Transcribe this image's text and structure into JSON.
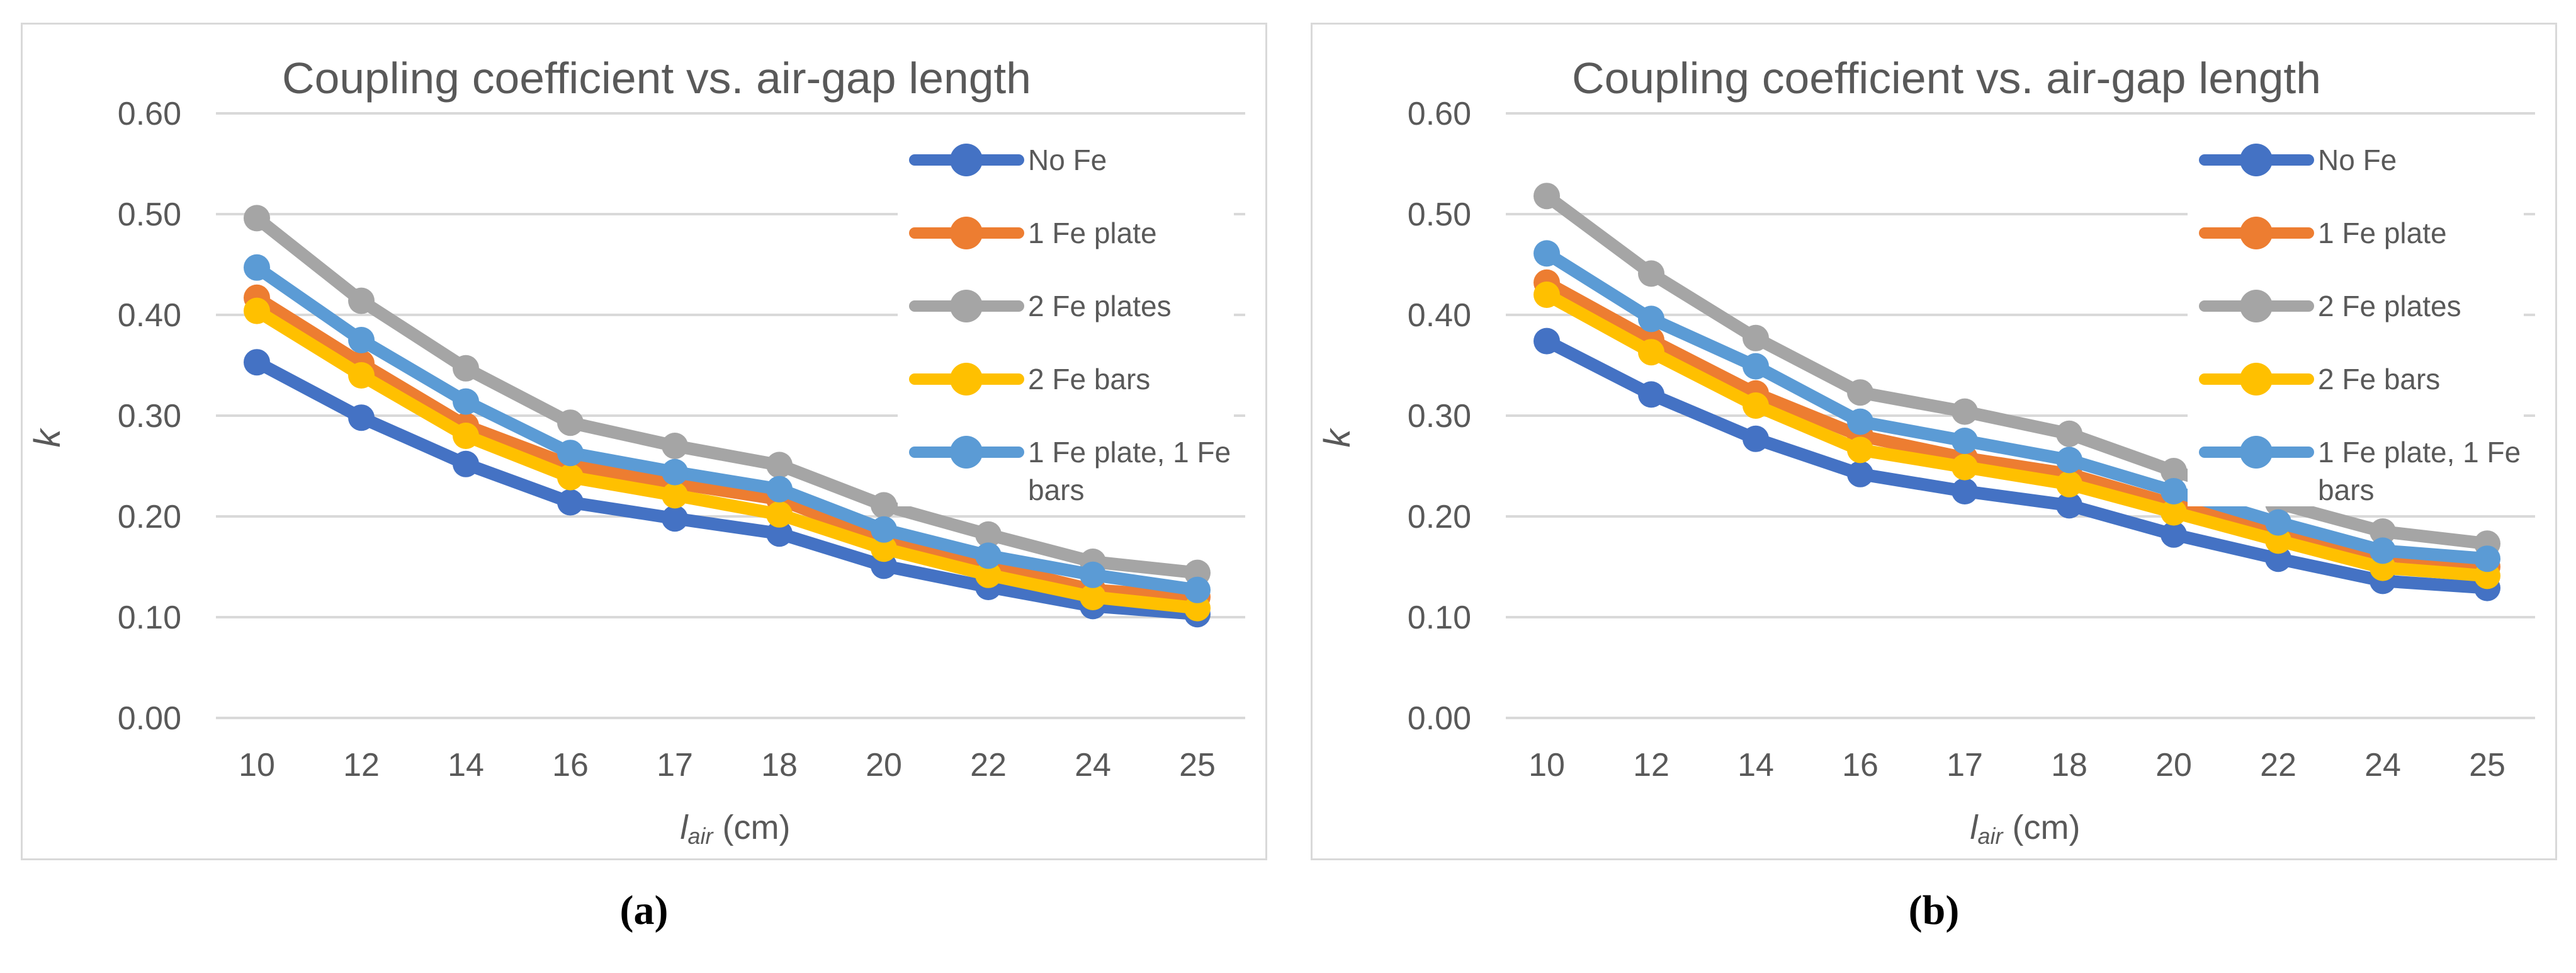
{
  "figure": {
    "caption_a": "(a)",
    "caption_b": "(b)"
  },
  "colors": {
    "series": [
      "#4472C4",
      "#ED7D31",
      "#A5A5A5",
      "#FFC000",
      "#5B9BD5"
    ],
    "gridline": "#D9D9D9",
    "chart_border": "#D9D9D9",
    "text": "#595959",
    "caption_text": "#000000",
    "legend_bg": "#FFFFFF"
  },
  "chart_data": [
    {
      "id": "a",
      "type": "line",
      "title": "Coupling coefficient vs. air-gap length",
      "xlabel_parts": {
        "symbol": "l",
        "subscript": "air",
        "unit": " (cm)"
      },
      "ylabel": "k",
      "x_categories": [
        10,
        12,
        14,
        16,
        17,
        18,
        20,
        22,
        24,
        25
      ],
      "ylim": [
        0.0,
        0.6
      ],
      "ytick_step": 0.1,
      "ytick_labels": [
        "0.00",
        "0.10",
        "0.20",
        "0.30",
        "0.40",
        "0.50",
        "0.60"
      ],
      "grid": "horizontal",
      "legend_position": "right-overlay",
      "marker": "circle",
      "series": [
        {
          "name": "No Fe",
          "values": [
            0.353,
            0.298,
            0.252,
            0.214,
            0.198,
            0.183,
            0.151,
            0.13,
            0.111,
            0.103
          ]
        },
        {
          "name": "1 Fe plate",
          "values": [
            0.417,
            0.352,
            0.29,
            0.251,
            0.233,
            0.217,
            0.177,
            0.152,
            0.127,
            0.12
          ]
        },
        {
          "name": "2 Fe plates",
          "values": [
            0.496,
            0.414,
            0.347,
            0.293,
            0.27,
            0.251,
            0.211,
            0.182,
            0.155,
            0.144
          ]
        },
        {
          "name": "2 Fe bars",
          "values": [
            0.404,
            0.34,
            0.28,
            0.239,
            0.221,
            0.202,
            0.168,
            0.142,
            0.12,
            0.109
          ]
        },
        {
          "name": "1 Fe plate, 1 Fe bars",
          "values": [
            0.447,
            0.375,
            0.314,
            0.263,
            0.244,
            0.227,
            0.187,
            0.161,
            0.142,
            0.127
          ]
        }
      ]
    },
    {
      "id": "b",
      "type": "line",
      "title": "Coupling coefficient vs. air-gap length",
      "xlabel_parts": {
        "symbol": "l",
        "subscript": "air",
        "unit": " (cm)"
      },
      "ylabel": "k",
      "x_categories": [
        10,
        12,
        14,
        16,
        17,
        18,
        20,
        22,
        24,
        25
      ],
      "ylim": [
        0.0,
        0.6
      ],
      "ytick_step": 0.1,
      "ytick_labels": [
        "0.00",
        "0.10",
        "0.20",
        "0.30",
        "0.40",
        "0.50",
        "0.60"
      ],
      "grid": "horizontal",
      "legend_position": "right-overlay",
      "marker": "circle",
      "series": [
        {
          "name": "No Fe",
          "values": [
            0.374,
            0.321,
            0.277,
            0.242,
            0.225,
            0.211,
            0.182,
            0.158,
            0.136,
            0.129
          ]
        },
        {
          "name": "1 Fe plate",
          "values": [
            0.432,
            0.375,
            0.322,
            0.28,
            0.258,
            0.242,
            0.212,
            0.188,
            0.162,
            0.15
          ]
        },
        {
          "name": "2 Fe plates",
          "values": [
            0.518,
            0.441,
            0.377,
            0.323,
            0.304,
            0.282,
            0.245,
            0.213,
            0.185,
            0.173
          ]
        },
        {
          "name": "2 Fe bars",
          "values": [
            0.42,
            0.363,
            0.31,
            0.266,
            0.249,
            0.232,
            0.204,
            0.176,
            0.149,
            0.141
          ]
        },
        {
          "name": "1 Fe plate, 1 Fe bars",
          "values": [
            0.461,
            0.396,
            0.349,
            0.294,
            0.275,
            0.256,
            0.225,
            0.194,
            0.166,
            0.158
          ]
        }
      ]
    }
  ]
}
